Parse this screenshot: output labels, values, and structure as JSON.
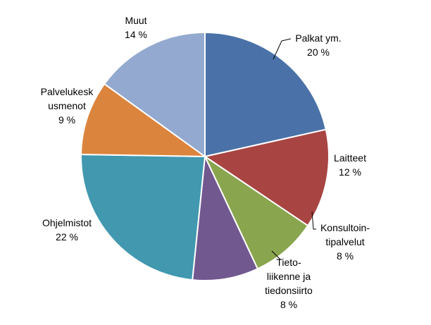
{
  "chart_data": {
    "type": "pie",
    "categories": [
      [
        "Palkat ym."
      ],
      [
        "Laitteet"
      ],
      [
        "Konsultoin-",
        "tipalvelut"
      ],
      [
        "Tieto-",
        "liikenne ja",
        "tiedonsiirto"
      ],
      [
        "Ohjelmistot"
      ],
      [
        "Palvelukesk",
        "usmenot"
      ],
      [
        "Muut"
      ]
    ],
    "values": [
      20,
      12,
      8,
      8,
      22,
      9,
      14
    ],
    "value_labels": [
      "20 %",
      "12 %",
      "8 %",
      "8 %",
      "22 %",
      "9 %",
      "14 %"
    ],
    "colors": [
      "#4a72a8",
      "#a84442",
      "#89a54e",
      "#71588f",
      "#4198af",
      "#db843d",
      "#93a9cf"
    ]
  }
}
